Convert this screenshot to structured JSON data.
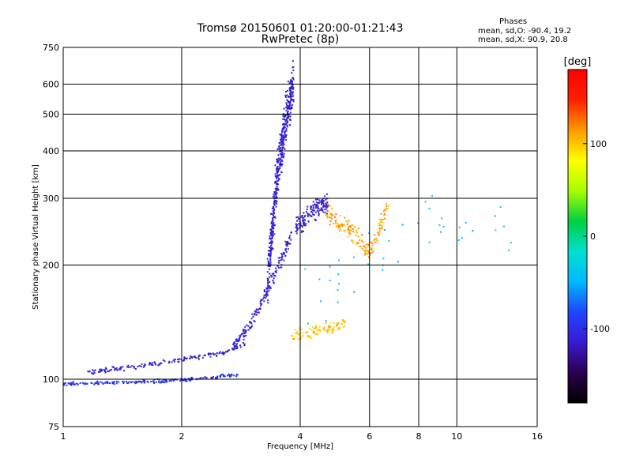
{
  "header": {
    "title": "Tromsø 20150601 01:20:00-01:21:43",
    "subtitle": "RwPretec (8p)",
    "stats_heading": "Phases",
    "stats_o": "mean, sd,O: -90.4, 19.2",
    "stats_x": "mean, sd,X: 90.9, 20.8"
  },
  "colors": {
    "grid": "#000000",
    "background": "#ffffff"
  },
  "chart_data": {
    "type": "scatter",
    "title": "Tromsø 20150601 01:20:00-01:21:43",
    "subtitle": "RwPretec (8p)",
    "xlabel": "Frequency [MHz]",
    "ylabel": "Stationary phase Virtual Height [km]",
    "xscale": "log",
    "yscale": "log",
    "xlim": [
      1,
      16
    ],
    "ylim": [
      75,
      750
    ],
    "xticks": [
      1,
      2,
      4,
      6,
      8,
      10,
      16
    ],
    "yticks": [
      75,
      100,
      200,
      300,
      400,
      500,
      600,
      750
    ],
    "xgrid": [
      2,
      4,
      6,
      8,
      10
    ],
    "ygrid": [
      100,
      200,
      300,
      400,
      500,
      600
    ],
    "colorbar": {
      "label": "[deg]",
      "ticks": [
        100,
        0,
        -100
      ],
      "range": [
        -180,
        180
      ],
      "colors": [
        "#000000",
        "#2a0050",
        "#3a1ad0",
        "#1e46ff",
        "#00b8ff",
        "#00e0d0",
        "#00d040",
        "#a8ff00",
        "#ffff00",
        "#ff9900",
        "#ff2000",
        "#ff0000"
      ]
    },
    "clusters": [
      {
        "name": "lower O trace",
        "phase": -95,
        "xrange": [
          1.0,
          2.8
        ],
        "ycurve": [
          [
            1.0,
            97
          ],
          [
            1.3,
            98
          ],
          [
            1.8,
            99
          ],
          [
            2.4,
            101
          ],
          [
            2.8,
            103
          ]
        ],
        "spread": 0.015,
        "n": 200
      },
      {
        "name": "upper O trace",
        "phase": -110,
        "xrange": [
          1.15,
          2.9
        ],
        "ycurve": [
          [
            1.15,
            104
          ],
          [
            1.6,
            109
          ],
          [
            2.0,
            113
          ],
          [
            2.6,
            118
          ],
          [
            2.9,
            124
          ]
        ],
        "spread": 0.02,
        "n": 160
      },
      {
        "name": "cusp rise",
        "phase": -110,
        "xrange": [
          2.7,
          3.8
        ],
        "ycurve": [
          [
            2.7,
            122
          ],
          [
            3.0,
            140
          ],
          [
            3.3,
            170
          ],
          [
            3.6,
            210
          ],
          [
            3.8,
            240
          ]
        ],
        "spread": 0.06,
        "n": 180
      },
      {
        "name": "F-layer column",
        "phase": -110,
        "xrange": [
          3.3,
          3.85
        ],
        "ycurve": [
          [
            3.3,
            180
          ],
          [
            3.5,
            350
          ],
          [
            3.7,
            500
          ],
          [
            3.85,
            620
          ]
        ],
        "spread": 0.2,
        "n": 500
      },
      {
        "name": "F-layer blob",
        "phase": -110,
        "xrange": [
          3.9,
          4.7
        ],
        "ycurve": [
          [
            3.9,
            250
          ],
          [
            4.3,
            280
          ],
          [
            4.7,
            290
          ]
        ],
        "spread": 0.08,
        "n": 150
      },
      {
        "name": "X trace mid",
        "phase": 100,
        "xrange": [
          3.8,
          5.2
        ],
        "ycurve": [
          [
            3.8,
            130
          ],
          [
            4.5,
            135
          ],
          [
            5.2,
            140
          ]
        ],
        "spread": 0.05,
        "n": 100
      },
      {
        "name": "X trace high",
        "phase": 110,
        "xrange": [
          4.6,
          6.7
        ],
        "ycurve": [
          [
            4.6,
            280
          ],
          [
            5.5,
            240
          ],
          [
            6.0,
            215
          ],
          [
            6.7,
            290
          ]
        ],
        "spread": 0.08,
        "n": 170
      },
      {
        "name": "scattered",
        "phase": -40,
        "xrange": [
          4.0,
          14.0
        ],
        "ycurve": [
          [
            4.0,
            160
          ],
          [
            8.0,
            260
          ],
          [
            14.0,
            250
          ]
        ],
        "spread": 0.25,
        "n": 45
      }
    ]
  }
}
